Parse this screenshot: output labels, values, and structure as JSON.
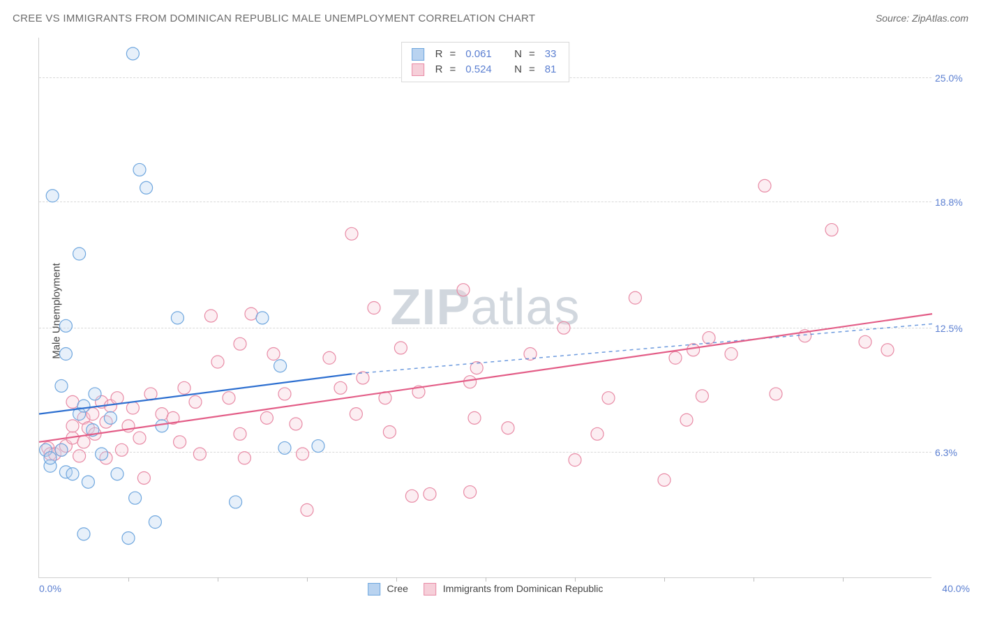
{
  "header": {
    "title": "CREE VS IMMIGRANTS FROM DOMINICAN REPUBLIC MALE UNEMPLOYMENT CORRELATION CHART",
    "source": "Source: ZipAtlas.com"
  },
  "watermark": {
    "bold": "ZIP",
    "rest": "atlas"
  },
  "chart": {
    "type": "scatter",
    "xlim": [
      0,
      40
    ],
    "ylim": [
      0,
      27
    ],
    "grid_color": "#d8d8d8",
    "background_color": "#ffffff",
    "axis_color": "#cfcfcf",
    "yticks": [
      {
        "v": 6.3,
        "label": "6.3%"
      },
      {
        "v": 12.5,
        "label": "12.5%"
      },
      {
        "v": 18.8,
        "label": "18.8%"
      },
      {
        "v": 25.0,
        "label": "25.0%"
      }
    ],
    "xticks": [
      4,
      8,
      12,
      16,
      20,
      24,
      28,
      32,
      36
    ],
    "xaxis_min_label": "0.0%",
    "xaxis_max_label": "40.0%",
    "ylabel": "Male Unemployment",
    "marker_radius": 9,
    "marker_stroke_width": 1.2,
    "marker_fill_opacity": 0.35,
    "line_width": 2.2,
    "dash_pattern": "5,5",
    "series": {
      "s1": {
        "label": "Cree",
        "color_fill": "#b9d3f0",
        "color_stroke": "#6ea6de",
        "line_color": "#2d6fd0",
        "R": "0.061",
        "N": "33",
        "trend": {
          "x1": 0,
          "y1": 8.2,
          "x2": 14,
          "y2": 10.2,
          "ext_x2": 40,
          "ext_y2": 12.7
        },
        "points": [
          [
            0.3,
            6.4
          ],
          [
            0.5,
            5.6
          ],
          [
            0.5,
            6.0
          ],
          [
            0.6,
            19.1
          ],
          [
            1.0,
            6.4
          ],
          [
            1.0,
            9.6
          ],
          [
            1.2,
            5.3
          ],
          [
            1.2,
            11.2
          ],
          [
            1.2,
            12.6
          ],
          [
            1.5,
            5.2
          ],
          [
            1.8,
            16.2
          ],
          [
            1.8,
            8.2
          ],
          [
            2.0,
            2.2
          ],
          [
            2.0,
            8.6
          ],
          [
            2.2,
            4.8
          ],
          [
            2.4,
            7.4
          ],
          [
            2.5,
            9.2
          ],
          [
            2.8,
            6.2
          ],
          [
            3.2,
            8.0
          ],
          [
            3.5,
            5.2
          ],
          [
            4.0,
            2.0
          ],
          [
            4.2,
            26.2
          ],
          [
            4.3,
            4.0
          ],
          [
            4.5,
            20.4
          ],
          [
            4.8,
            19.5
          ],
          [
            5.2,
            2.8
          ],
          [
            5.5,
            7.6
          ],
          [
            6.2,
            13.0
          ],
          [
            8.8,
            3.8
          ],
          [
            10.0,
            13.0
          ],
          [
            10.8,
            10.6
          ],
          [
            11.0,
            6.5
          ],
          [
            12.5,
            6.6
          ]
        ]
      },
      "s2": {
        "label": "Immigrants from Dominican Republic",
        "color_fill": "#f6cfd9",
        "color_stroke": "#e88aa5",
        "line_color": "#e35d87",
        "R": "0.524",
        "N": "81",
        "trend": {
          "x1": 0,
          "y1": 6.8,
          "x2": 40,
          "y2": 13.2
        },
        "points": [
          [
            0.4,
            6.5
          ],
          [
            0.5,
            6.2
          ],
          [
            0.7,
            6.2
          ],
          [
            1.0,
            6.4
          ],
          [
            1.2,
            6.6
          ],
          [
            1.5,
            7.0
          ],
          [
            1.5,
            7.6
          ],
          [
            1.5,
            8.8
          ],
          [
            1.8,
            6.1
          ],
          [
            2.0,
            8.0
          ],
          [
            2.0,
            6.8
          ],
          [
            2.2,
            7.5
          ],
          [
            2.4,
            8.2
          ],
          [
            2.5,
            7.2
          ],
          [
            2.8,
            8.8
          ],
          [
            3.0,
            6.0
          ],
          [
            3.0,
            7.8
          ],
          [
            3.2,
            8.6
          ],
          [
            3.5,
            9.0
          ],
          [
            3.7,
            6.4
          ],
          [
            4.0,
            7.6
          ],
          [
            4.2,
            8.5
          ],
          [
            4.5,
            7.0
          ],
          [
            4.7,
            5.0
          ],
          [
            5.0,
            9.2
          ],
          [
            5.5,
            8.2
          ],
          [
            6.0,
            8.0
          ],
          [
            6.3,
            6.8
          ],
          [
            6.5,
            9.5
          ],
          [
            7.0,
            8.8
          ],
          [
            7.2,
            6.2
          ],
          [
            7.7,
            13.1
          ],
          [
            8.0,
            10.8
          ],
          [
            8.5,
            9.0
          ],
          [
            9.0,
            11.7
          ],
          [
            9.0,
            7.2
          ],
          [
            9.2,
            6.0
          ],
          [
            9.5,
            13.2
          ],
          [
            10.2,
            8.0
          ],
          [
            10.5,
            11.2
          ],
          [
            11.0,
            9.2
          ],
          [
            11.5,
            7.7
          ],
          [
            11.8,
            6.2
          ],
          [
            12.0,
            3.4
          ],
          [
            13.0,
            11.0
          ],
          [
            13.5,
            9.5
          ],
          [
            14.0,
            17.2
          ],
          [
            14.2,
            8.2
          ],
          [
            14.5,
            10.0
          ],
          [
            15.0,
            13.5
          ],
          [
            15.5,
            9.0
          ],
          [
            15.7,
            7.3
          ],
          [
            16.2,
            11.5
          ],
          [
            16.7,
            4.1
          ],
          [
            17.0,
            9.3
          ],
          [
            17.5,
            4.2
          ],
          [
            19.0,
            14.4
          ],
          [
            19.3,
            4.3
          ],
          [
            19.3,
            9.8
          ],
          [
            19.5,
            8.0
          ],
          [
            19.6,
            10.5
          ],
          [
            21.0,
            7.5
          ],
          [
            22.0,
            11.2
          ],
          [
            23.5,
            12.5
          ],
          [
            24.0,
            5.9
          ],
          [
            25.0,
            7.2
          ],
          [
            25.5,
            9.0
          ],
          [
            26.7,
            14.0
          ],
          [
            28.0,
            4.9
          ],
          [
            28.5,
            11.0
          ],
          [
            29.0,
            7.9
          ],
          [
            29.3,
            11.4
          ],
          [
            29.7,
            9.1
          ],
          [
            30.0,
            12.0
          ],
          [
            31.0,
            11.2
          ],
          [
            32.5,
            19.6
          ],
          [
            33.0,
            9.2
          ],
          [
            34.3,
            12.1
          ],
          [
            35.5,
            17.4
          ],
          [
            37.0,
            11.8
          ],
          [
            38.0,
            11.4
          ]
        ]
      }
    }
  },
  "top_legend": {
    "R_label": "R",
    "N_label": "N",
    "eq": "="
  },
  "bottom_legend": {
    "items": [
      {
        "key": "s1"
      },
      {
        "key": "s2"
      }
    ]
  }
}
